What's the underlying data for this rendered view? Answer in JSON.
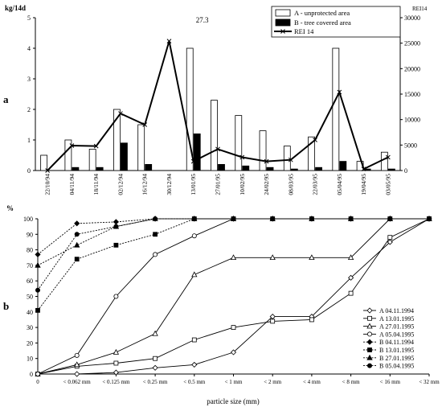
{
  "panels": {
    "a": "a",
    "b": "b"
  },
  "chart_data": [
    {
      "type": "bar",
      "panel": "a",
      "categories": [
        "22/10/94",
        "04/11/94",
        "18/11/94",
        "02/12/94",
        "16/12/94",
        "30/12/94",
        "13/01/95",
        "27/01/95",
        "10/02/95",
        "24/02/95",
        "08/03/95",
        "22/03/95",
        "05/04/95",
        "19/04/95",
        "03/05/95"
      ],
      "ylabel": "kg/14d",
      "ylim": [
        0,
        5
      ],
      "yticks": [
        "0",
        "1",
        "2",
        "3",
        "4",
        "5"
      ],
      "y2label": "REI14",
      "y2lim": [
        0,
        30000
      ],
      "y2ticks": [
        "0",
        "5000",
        "10000",
        "15000",
        "20000",
        "25000",
        "30000"
      ],
      "series": [
        {
          "name": "A - unprotected area",
          "kind": "bar",
          "fill": "#ffffff",
          "values": [
            0.5,
            1.0,
            0.7,
            2.0,
            1.5,
            0,
            4.0,
            2.3,
            1.8,
            1.3,
            0.8,
            1.1,
            4.0,
            0.3,
            0.6
          ]
        },
        {
          "name": "B - tree covered area",
          "kind": "bar",
          "fill": "#000000",
          "values": [
            0,
            0.1,
            0.1,
            0.9,
            0.2,
            0,
            1.2,
            0.2,
            0.15,
            0.1,
            0.05,
            0.1,
            0.3,
            0.05,
            0.05
          ]
        },
        {
          "name": "REI 14",
          "kind": "line",
          "axis": "right",
          "values": [
            0,
            4900,
            4800,
            11200,
            9000,
            25400,
            1800,
            4200,
            2600,
            1800,
            2100,
            6000,
            15400,
            300,
            2600
          ]
        }
      ],
      "annotations": [
        {
          "category": "13/01/95",
          "text": "27.3"
        }
      ],
      "legend_position": "top-right"
    },
    {
      "type": "line",
      "panel": "b",
      "ylabel": "%",
      "ylim": [
        0,
        100
      ],
      "yticks": [
        "0",
        "10",
        "20",
        "30",
        "40",
        "50",
        "60",
        "70",
        "80",
        "90",
        "100"
      ],
      "xlabel": "particle size (mm)",
      "categories": [
        "0",
        "< 0.062 mm",
        "< 0.125 mm",
        "< 0.25 mm",
        "< 0.5 mm",
        "< 1 mm",
        "< 2 mm",
        "< 4 mm",
        "< 8 mm",
        "< 16 mm",
        "< 32 mm"
      ],
      "series": [
        {
          "name": "A 04.11.1994",
          "marker": "diamond-open",
          "dash": false,
          "values": [
            0,
            0,
            1,
            4,
            6,
            14,
            37,
            37,
            62,
            85,
            100
          ]
        },
        {
          "name": "A 13.01.1995",
          "marker": "square-open",
          "dash": false,
          "values": [
            0,
            5,
            7,
            10,
            22,
            30,
            34,
            35,
            52,
            88,
            100
          ]
        },
        {
          "name": "A 27.01.1995",
          "marker": "triangle-open",
          "dash": false,
          "values": [
            0,
            6,
            14,
            26,
            64,
            75,
            75,
            75,
            75,
            100,
            100
          ]
        },
        {
          "name": "A 05.04.1995",
          "marker": "circle-open",
          "dash": false,
          "values": [
            0,
            12,
            50,
            77,
            89,
            100,
            100,
            100,
            100,
            100,
            100
          ]
        },
        {
          "name": "B 04.11.1994",
          "marker": "diamond-filled",
          "dash": true,
          "values": [
            77,
            97,
            98,
            100,
            100,
            100,
            100,
            100,
            100,
            100,
            100
          ]
        },
        {
          "name": "B 13.01.1995",
          "marker": "square-filled",
          "dash": true,
          "values": [
            41,
            74,
            83,
            90,
            100,
            100,
            100,
            100,
            100,
            100,
            100
          ]
        },
        {
          "name": "B 27.01.1995",
          "marker": "triangle-filled",
          "dash": true,
          "values": [
            70,
            83,
            95,
            100,
            100,
            100,
            100,
            100,
            100,
            100,
            100
          ]
        },
        {
          "name": "B 05.04.1995",
          "marker": "circle-filled",
          "dash": true,
          "values": [
            54,
            90,
            95,
            100,
            100,
            100,
            100,
            100,
            100,
            100,
            100
          ]
        }
      ],
      "legend_position": "bottom-right"
    }
  ]
}
